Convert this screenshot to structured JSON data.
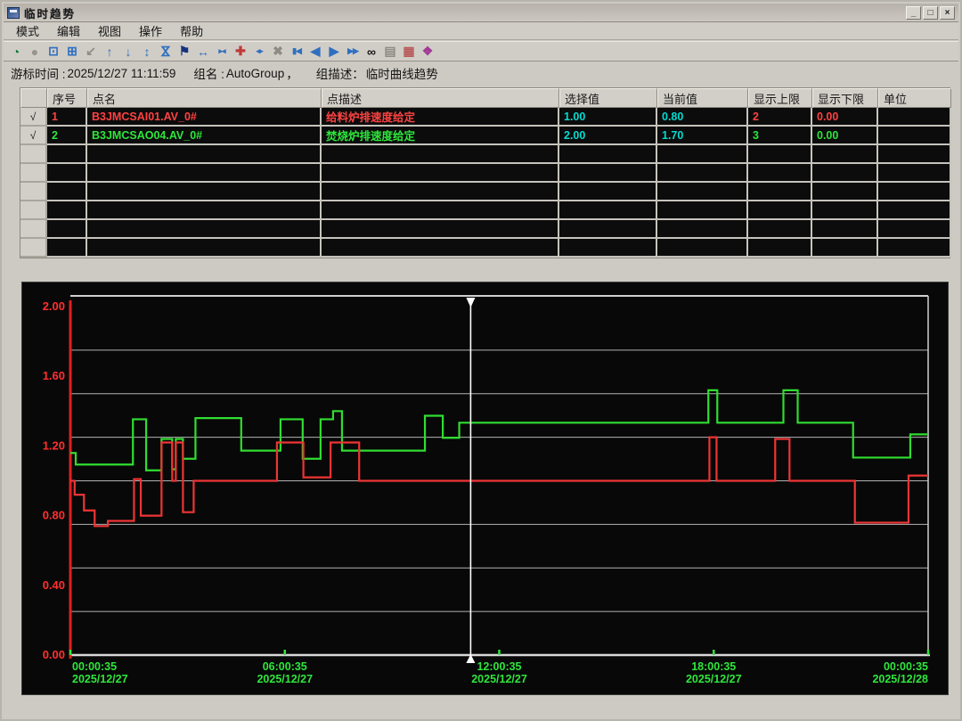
{
  "window": {
    "title": "临时趋势",
    "minimize": "_",
    "maximize": "□",
    "close": "×"
  },
  "menu": {
    "items": [
      "模式",
      "编辑",
      "视图",
      "操作",
      "帮助"
    ]
  },
  "toolbar": {
    "icons": [
      {
        "name": "realtime-trend-icon",
        "glyph": "◔",
        "color": "#0a7a3c"
      },
      {
        "name": "record-icon",
        "glyph": "●",
        "color": "#98948c"
      },
      {
        "name": "open-trend-icon",
        "glyph": "⊡",
        "color": "#2f6fc0"
      },
      {
        "name": "export-window-icon",
        "glyph": "⊞",
        "color": "#2f6fc0"
      },
      {
        "name": "corner-arrow-icon",
        "glyph": "↙",
        "color": "#8f8b83"
      },
      {
        "name": "scale-up-icon",
        "glyph": "↑",
        "color": "#2f6fc0"
      },
      {
        "name": "scale-down-icon",
        "glyph": "↓",
        "color": "#2f6fc0"
      },
      {
        "name": "expand-vertical-icon",
        "glyph": "↕",
        "color": "#2f6fc0"
      },
      {
        "name": "compress-vertical-icon",
        "glyph": "⋈",
        "color": "#2f6fc0",
        "rot": true
      },
      {
        "name": "cursor-flag-icon",
        "glyph": "⚑",
        "color": "#16327e"
      },
      {
        "name": "expand-horizontal-icon",
        "glyph": "↔",
        "color": "#2f6fc0"
      },
      {
        "name": "compress-horizontal-icon",
        "glyph": "▸◂",
        "color": "#2f6fc0",
        "small": true
      },
      {
        "name": "expand-all-icon",
        "glyph": "✚",
        "color": "#c03a3a"
      },
      {
        "name": "restore-scale-icon",
        "glyph": "◂▸",
        "color": "#2f6fc0",
        "small": true
      },
      {
        "name": "tools-icon",
        "glyph": "✖",
        "color": "#8f8b83"
      },
      {
        "name": "page-back-icon",
        "glyph": "▮◀",
        "color": "#2f6fc0",
        "small": true
      },
      {
        "name": "step-back-icon",
        "glyph": "◀",
        "color": "#2f6fc0"
      },
      {
        "name": "step-forward-icon",
        "glyph": "▶",
        "color": "#2f6fc0"
      },
      {
        "name": "page-forward-icon",
        "glyph": "▶▶",
        "color": "#2f6fc0",
        "small": true
      },
      {
        "name": "search-icon",
        "glyph": "∞",
        "color": "#141414"
      },
      {
        "name": "print-icon",
        "glyph": "▤",
        "color": "#8f8b83"
      },
      {
        "name": "report-icon",
        "glyph": "▦",
        "color": "#b85a5a"
      },
      {
        "name": "help-book-icon",
        "glyph": "❖",
        "color": "#a23a96"
      }
    ]
  },
  "info_bar": {
    "cursor_time_label": "游标时间 :",
    "cursor_time": "2025/12/27 11:11:59",
    "group_label": "组名 :",
    "group_name": "AutoGroup",
    "separator": "，",
    "group_desc_label": "组描述：",
    "group_desc": "临时曲线趋势"
  },
  "table": {
    "headers": [
      "",
      "序号",
      "点名",
      "点描述",
      "选择值",
      "当前值",
      "显示上限",
      "显示下限",
      "单位"
    ],
    "rows": [
      {
        "checked": "√",
        "index": "1",
        "name": "B3JMCSAI01.AV_0#",
        "desc": "给料炉排速度给定",
        "selected": "1.00",
        "current": "0.80",
        "disp_high": "2",
        "disp_low": "0.00",
        "unit": "",
        "color": "#ff4242",
        "value_color": "#00dcd0"
      },
      {
        "checked": "√",
        "index": "2",
        "name": "B3JMCSAO04.AV_0#",
        "desc": "焚烧炉排速度给定",
        "selected": "2.00",
        "current": "1.70",
        "disp_high": "3",
        "disp_low": "0.00",
        "unit": "",
        "color": "#2ee63c",
        "value_color": "#00dcd0"
      }
    ],
    "empty_rows": 6
  },
  "chart_data": {
    "type": "line",
    "background": "#080808",
    "grid_color": "#b2b2b2",
    "gridline_interval": 0.25,
    "x_axis": {
      "range_hours": [
        0,
        24
      ],
      "label_color": "#2ee63c",
      "ticks": [
        {
          "time": "00:00:35",
          "date": "2025/12/27"
        },
        {
          "time": "06:00:35",
          "date": "2025/12/27"
        },
        {
          "time": "12:00:35",
          "date": "2025/12/27"
        },
        {
          "time": "18:00:35",
          "date": "2025/12/27"
        },
        {
          "time": "00:00:35",
          "date": "2025/12/28"
        }
      ]
    },
    "y_axis": {
      "min": 0,
      "max": 2,
      "tick_labels": [
        "0.00",
        "0.40",
        "0.80",
        "1.20",
        "1.60",
        "2.00"
      ],
      "label_color": "#ff3030",
      "axis_color": "#e02020"
    },
    "cursor": {
      "time": "11:11:59",
      "date": "2025/12/27",
      "t_hours": 11.2,
      "color": "#ffffff"
    },
    "series": [
      {
        "name": "B3JMCSAO04.AV_0#",
        "desc": "焚烧炉排速度给定",
        "color": "#30dd30",
        "display_min": 0,
        "display_max": 3,
        "points": [
          [
            0,
            1.74
          ],
          [
            0.15,
            1.64
          ],
          [
            1.75,
            2.03
          ],
          [
            2.12,
            1.59
          ],
          [
            2.55,
            1.86
          ],
          [
            2.85,
            1.6
          ],
          [
            2.95,
            1.86
          ],
          [
            3.15,
            1.69
          ],
          [
            3.5,
            2.04
          ],
          [
            4.78,
            1.76
          ],
          [
            5.88,
            2.03
          ],
          [
            6.5,
            1.69
          ],
          [
            7.0,
            2.03
          ],
          [
            7.35,
            2.1
          ],
          [
            7.6,
            1.76
          ],
          [
            9.92,
            2.06
          ],
          [
            10.42,
            1.87
          ],
          [
            10.88,
            2.0
          ],
          [
            17.85,
            2.28
          ],
          [
            18.1,
            2.0
          ],
          [
            19.95,
            2.28
          ],
          [
            20.35,
            2.0
          ],
          [
            21.9,
            1.7
          ],
          [
            23.5,
            1.9
          ],
          [
            24,
            1.9
          ]
        ]
      },
      {
        "name": "B3JMCSAI01.AV_0#",
        "desc": "给料炉排速度给定",
        "color": "#ee3434",
        "display_min": 0,
        "display_max": 2,
        "points": [
          [
            0,
            1.0
          ],
          [
            0.12,
            0.92
          ],
          [
            0.38,
            0.83
          ],
          [
            0.68,
            0.74
          ],
          [
            1.05,
            0.77
          ],
          [
            1.78,
            1.01
          ],
          [
            1.97,
            0.8
          ],
          [
            2.55,
            1.22
          ],
          [
            2.85,
            1.0
          ],
          [
            2.95,
            1.22
          ],
          [
            3.15,
            0.82
          ],
          [
            3.45,
            1.0
          ],
          [
            5.78,
            1.22
          ],
          [
            6.52,
            1.02
          ],
          [
            7.28,
            1.22
          ],
          [
            8.08,
            1.0
          ],
          [
            17.88,
            1.25
          ],
          [
            18.08,
            1.0
          ],
          [
            19.72,
            1.24
          ],
          [
            20.12,
            1.0
          ],
          [
            21.95,
            0.76
          ],
          [
            23.45,
            1.03
          ],
          [
            24,
            1.03
          ]
        ]
      }
    ]
  }
}
